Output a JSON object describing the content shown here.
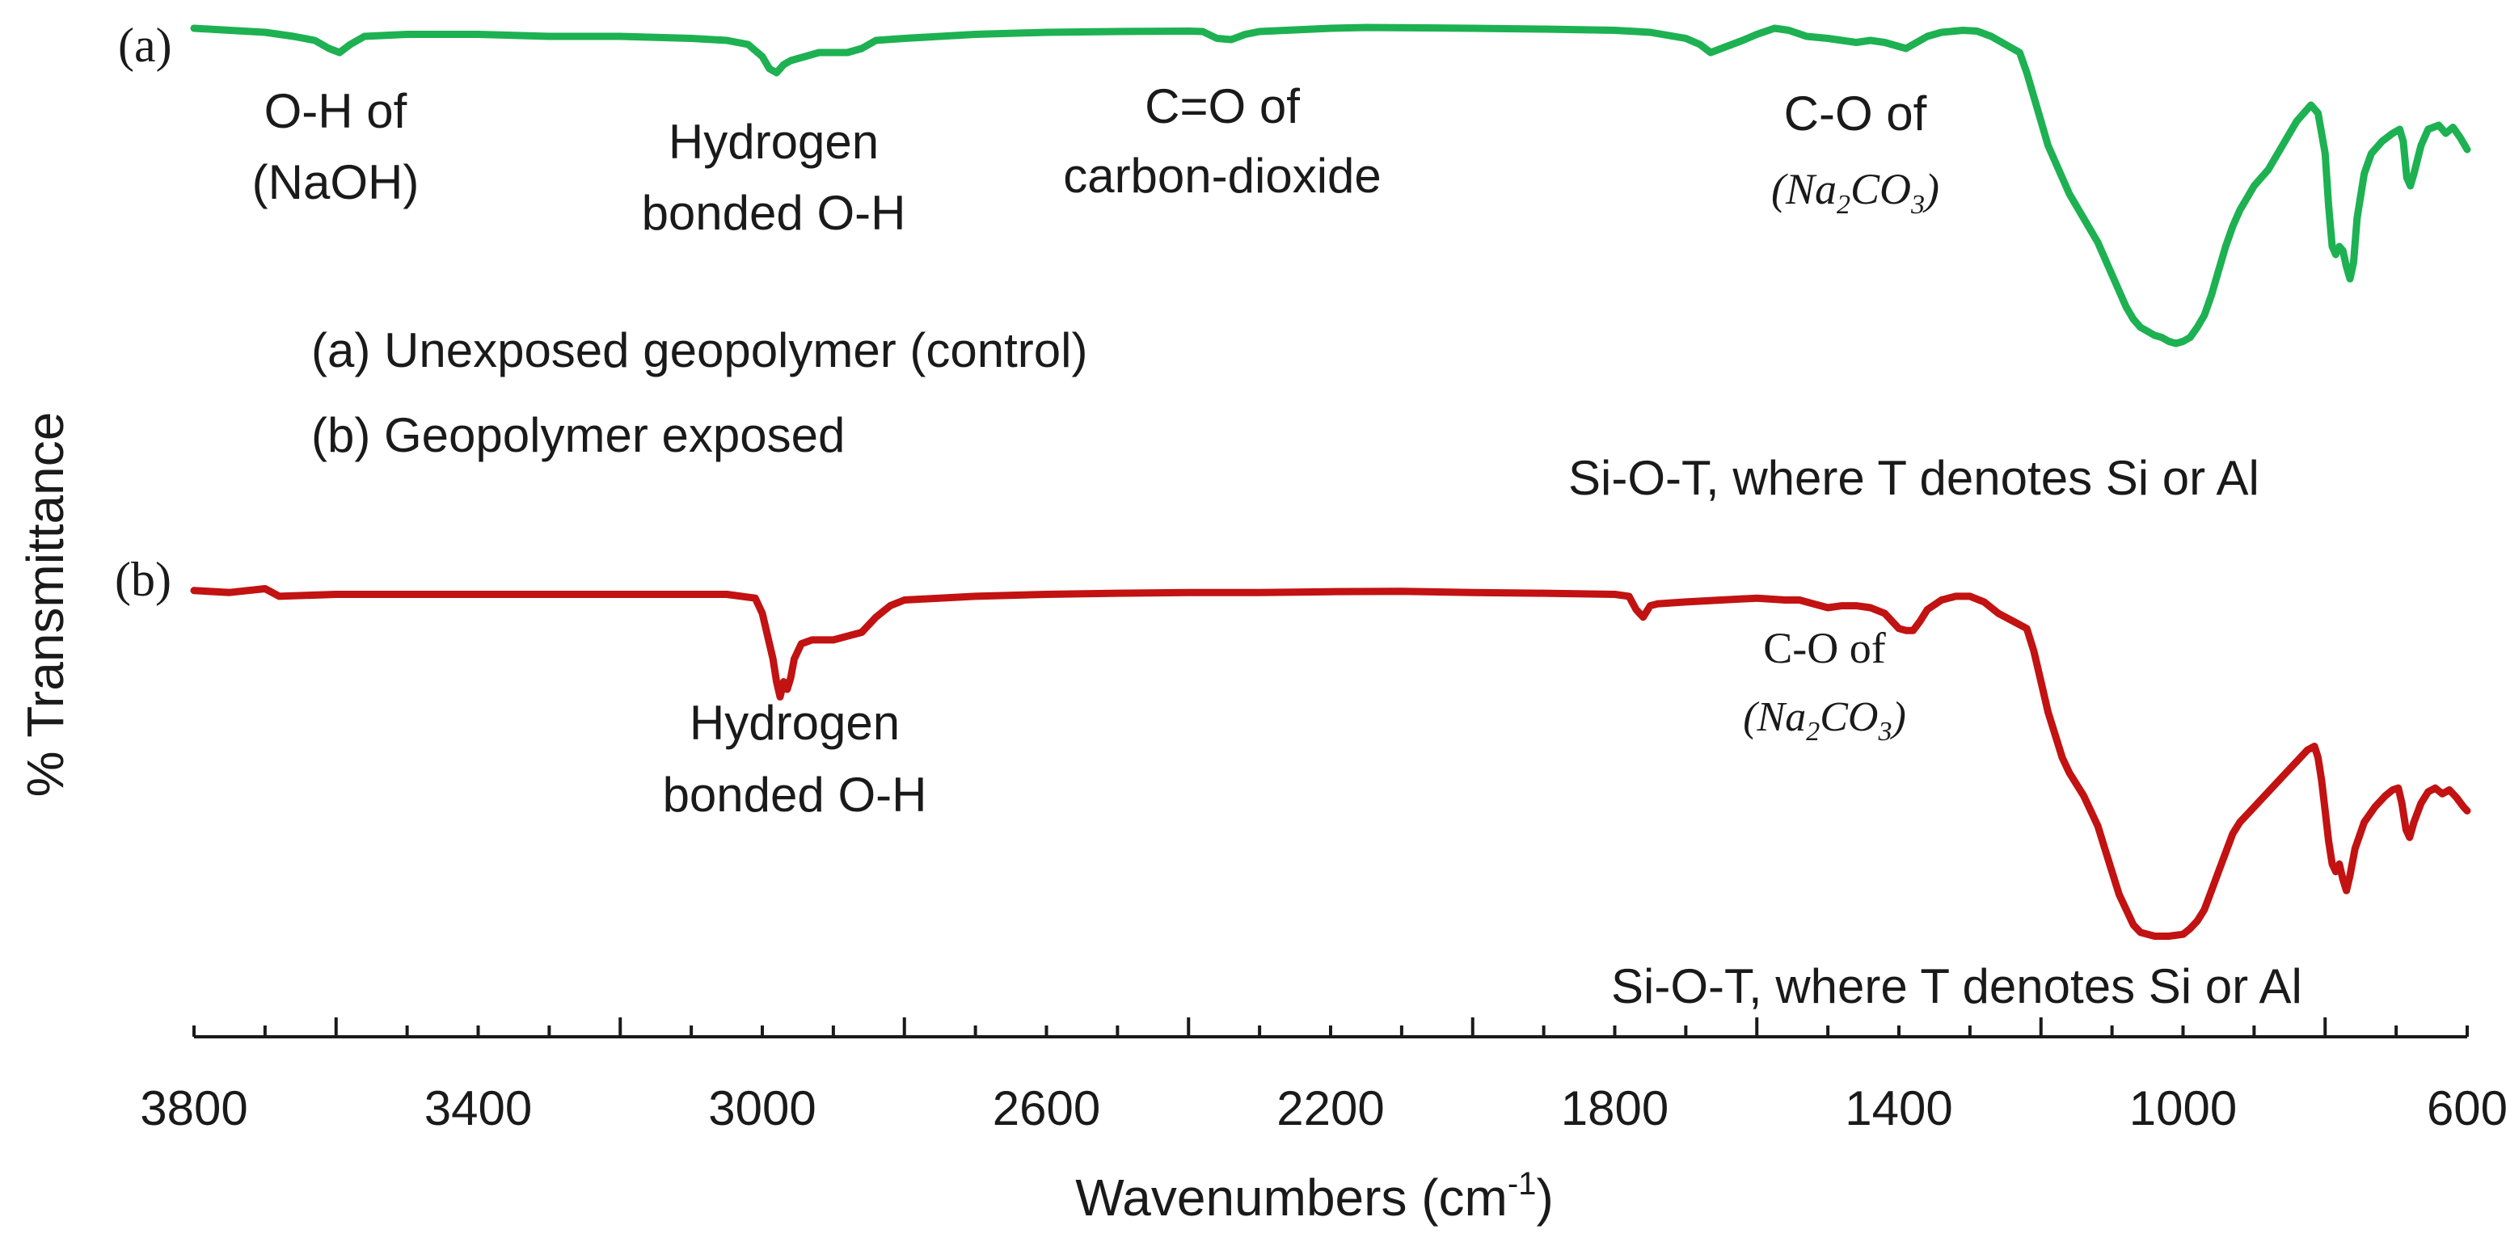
{
  "chart_data": {
    "type": "line",
    "title": "",
    "xlabel": "Wavenumbers",
    "xlabel_unit": "(cm",
    "xlabel_unit_sup": "-1",
    "xlabel_unit_close": ")",
    "ylabel": "% Transmittance",
    "xlim": [
      3800,
      600
    ],
    "x_reversed": true,
    "grid": false,
    "x_ticks": [
      3800,
      3400,
      3000,
      2600,
      2200,
      1800,
      1400,
      1000,
      600
    ],
    "x_tick_labels": [
      "3800",
      "3400",
      "3000",
      "2600",
      "2200",
      "1800",
      "1400",
      "1000",
      "600"
    ],
    "legend": {
      "placement": "upper-left",
      "entries": [
        "(a) Unexposed geopolymer (control)",
        "(b) Geopolymer exposed"
      ]
    },
    "series": [
      {
        "name": "(a) Unexposed geopolymer (control)",
        "panel_label": "(a)",
        "color": "#1db152",
        "ylim": [
          0,
          100
        ],
        "points": [
          [
            3800,
            99
          ],
          [
            3750,
            98.5
          ],
          [
            3700,
            98
          ],
          [
            3660,
            97
          ],
          [
            3630,
            96
          ],
          [
            3610,
            94
          ],
          [
            3595,
            93
          ],
          [
            3580,
            95
          ],
          [
            3560,
            97
          ],
          [
            3500,
            97.5
          ],
          [
            3400,
            97.5
          ],
          [
            3300,
            97
          ],
          [
            3200,
            97
          ],
          [
            3100,
            96.5
          ],
          [
            3050,
            96
          ],
          [
            3020,
            95
          ],
          [
            3000,
            92
          ],
          [
            2990,
            89
          ],
          [
            2980,
            88
          ],
          [
            2970,
            90
          ],
          [
            2960,
            91
          ],
          [
            2940,
            92
          ],
          [
            2920,
            93
          ],
          [
            2880,
            93
          ],
          [
            2860,
            94
          ],
          [
            2840,
            96
          ],
          [
            2800,
            96.5
          ],
          [
            2700,
            97.5
          ],
          [
            2600,
            98
          ],
          [
            2500,
            98.2
          ],
          [
            2400,
            98.3
          ],
          [
            2380,
            98.2
          ],
          [
            2360,
            96.5
          ],
          [
            2340,
            96.2
          ],
          [
            2320,
            97.5
          ],
          [
            2300,
            98.2
          ],
          [
            2200,
            99
          ],
          [
            2150,
            99.2
          ],
          [
            2000,
            99
          ],
          [
            1900,
            98.8
          ],
          [
            1800,
            98.5
          ],
          [
            1750,
            98
          ],
          [
            1700,
            96.5
          ],
          [
            1680,
            95
          ],
          [
            1665,
            93
          ],
          [
            1650,
            94
          ],
          [
            1620,
            96
          ],
          [
            1600,
            97.5
          ],
          [
            1575,
            99
          ],
          [
            1555,
            98.5
          ],
          [
            1530,
            97
          ],
          [
            1500,
            96.5
          ],
          [
            1480,
            96
          ],
          [
            1460,
            95.5
          ],
          [
            1440,
            96
          ],
          [
            1420,
            95.5
          ],
          [
            1400,
            94.5
          ],
          [
            1390,
            94
          ],
          [
            1375,
            95.5
          ],
          [
            1360,
            97
          ],
          [
            1340,
            98
          ],
          [
            1310,
            98.5
          ],
          [
            1290,
            98.3
          ],
          [
            1270,
            97
          ],
          [
            1250,
            95
          ],
          [
            1230,
            93
          ],
          [
            1220,
            88
          ],
          [
            1210,
            82
          ],
          [
            1200,
            76
          ],
          [
            1190,
            70
          ],
          [
            1180,
            66
          ],
          [
            1170,
            62
          ],
          [
            1160,
            58
          ],
          [
            1150,
            55
          ],
          [
            1140,
            52
          ],
          [
            1130,
            49
          ],
          [
            1120,
            46
          ],
          [
            1110,
            42
          ],
          [
            1100,
            38
          ],
          [
            1090,
            34
          ],
          [
            1080,
            30
          ],
          [
            1070,
            27
          ],
          [
            1060,
            25
          ],
          [
            1050,
            24
          ],
          [
            1040,
            23
          ],
          [
            1030,
            22.5
          ],
          [
            1020,
            21.5
          ],
          [
            1010,
            21
          ],
          [
            1000,
            21.5
          ],
          [
            990,
            22.5
          ],
          [
            980,
            25
          ],
          [
            970,
            28
          ],
          [
            960,
            33
          ],
          [
            950,
            39
          ],
          [
            940,
            45
          ],
          [
            930,
            50
          ],
          [
            920,
            54
          ],
          [
            910,
            57
          ],
          [
            900,
            60
          ],
          [
            880,
            64
          ],
          [
            860,
            70
          ],
          [
            840,
            76
          ],
          [
            820,
            80
          ],
          [
            810,
            78
          ],
          [
            800,
            68
          ],
          [
            795,
            55
          ],
          [
            790,
            45
          ],
          [
            785,
            43
          ],
          [
            780,
            45
          ],
          [
            775,
            44
          ],
          [
            770,
            40
          ],
          [
            765,
            37
          ],
          [
            760,
            41
          ],
          [
            755,
            52
          ],
          [
            745,
            63
          ],
          [
            735,
            68
          ],
          [
            720,
            71
          ],
          [
            705,
            73
          ],
          [
            695,
            74
          ],
          [
            690,
            71
          ],
          [
            685,
            62
          ],
          [
            680,
            60
          ],
          [
            675,
            63
          ],
          [
            665,
            70
          ],
          [
            655,
            74
          ],
          [
            640,
            75
          ],
          [
            630,
            73
          ],
          [
            620,
            74.5
          ],
          [
            610,
            72
          ],
          [
            600,
            69
          ]
        ]
      },
      {
        "name": "(b) Geopolymer exposed",
        "panel_label": "(b)",
        "color": "#c21212",
        "ylim": [
          0,
          100
        ],
        "points": [
          [
            3800,
            96
          ],
          [
            3750,
            95.5
          ],
          [
            3700,
            96.5
          ],
          [
            3680,
            94.5
          ],
          [
            3600,
            95
          ],
          [
            3500,
            95
          ],
          [
            3400,
            95
          ],
          [
            3300,
            95
          ],
          [
            3200,
            95
          ],
          [
            3100,
            95
          ],
          [
            3050,
            95
          ],
          [
            3010,
            94
          ],
          [
            3000,
            90
          ],
          [
            2990,
            82
          ],
          [
            2985,
            78
          ],
          [
            2980,
            72
          ],
          [
            2975,
            68
          ],
          [
            2970,
            72
          ],
          [
            2965,
            70
          ],
          [
            2960,
            73
          ],
          [
            2955,
            78
          ],
          [
            2945,
            82
          ],
          [
            2930,
            83
          ],
          [
            2900,
            83
          ],
          [
            2880,
            84
          ],
          [
            2860,
            85
          ],
          [
            2840,
            89
          ],
          [
            2820,
            92
          ],
          [
            2800,
            93.5
          ],
          [
            2700,
            94.5
          ],
          [
            2600,
            95
          ],
          [
            2500,
            95.3
          ],
          [
            2400,
            95.5
          ],
          [
            2300,
            95.5
          ],
          [
            2200,
            95.7
          ],
          [
            2100,
            95.8
          ],
          [
            2000,
            95.5
          ],
          [
            1900,
            95.3
          ],
          [
            1800,
            95
          ],
          [
            1780,
            94.5
          ],
          [
            1770,
            91
          ],
          [
            1760,
            89
          ],
          [
            1750,
            92
          ],
          [
            1740,
            92.5
          ],
          [
            1700,
            93
          ],
          [
            1650,
            93.5
          ],
          [
            1600,
            94
          ],
          [
            1560,
            93.5
          ],
          [
            1540,
            93.5
          ],
          [
            1520,
            92.5
          ],
          [
            1500,
            91.5
          ],
          [
            1480,
            92
          ],
          [
            1460,
            92
          ],
          [
            1440,
            91.5
          ],
          [
            1420,
            90
          ],
          [
            1400,
            86
          ],
          [
            1390,
            85.5
          ],
          [
            1380,
            85.5
          ],
          [
            1370,
            88
          ],
          [
            1360,
            91
          ],
          [
            1340,
            93.5
          ],
          [
            1320,
            94.5
          ],
          [
            1300,
            94.5
          ],
          [
            1280,
            93
          ],
          [
            1260,
            90
          ],
          [
            1240,
            88
          ],
          [
            1220,
            86
          ],
          [
            1210,
            80
          ],
          [
            1200,
            72
          ],
          [
            1190,
            64
          ],
          [
            1180,
            58
          ],
          [
            1170,
            52
          ],
          [
            1160,
            48
          ],
          [
            1150,
            45
          ],
          [
            1140,
            42
          ],
          [
            1130,
            38
          ],
          [
            1120,
            34
          ],
          [
            1110,
            28
          ],
          [
            1100,
            22
          ],
          [
            1090,
            16
          ],
          [
            1080,
            12
          ],
          [
            1070,
            8
          ],
          [
            1060,
            6
          ],
          [
            1040,
            5
          ],
          [
            1020,
            5
          ],
          [
            1000,
            5.5
          ],
          [
            990,
            7
          ],
          [
            980,
            9
          ],
          [
            970,
            12
          ],
          [
            960,
            17
          ],
          [
            950,
            22
          ],
          [
            940,
            27
          ],
          [
            930,
            32
          ],
          [
            920,
            35
          ],
          [
            900,
            39
          ],
          [
            880,
            43
          ],
          [
            860,
            47
          ],
          [
            840,
            51
          ],
          [
            825,
            54
          ],
          [
            815,
            55
          ],
          [
            810,
            52
          ],
          [
            805,
            46
          ],
          [
            800,
            38
          ],
          [
            795,
            30
          ],
          [
            790,
            24
          ],
          [
            785,
            22
          ],
          [
            780,
            24
          ],
          [
            775,
            20
          ],
          [
            770,
            17
          ],
          [
            765,
            21
          ],
          [
            758,
            28
          ],
          [
            745,
            35
          ],
          [
            730,
            39
          ],
          [
            715,
            42
          ],
          [
            705,
            43.5
          ],
          [
            697,
            44
          ],
          [
            692,
            40
          ],
          [
            686,
            33
          ],
          [
            681,
            31
          ],
          [
            675,
            35
          ],
          [
            665,
            40
          ],
          [
            655,
            43
          ],
          [
            645,
            44
          ],
          [
            635,
            42.5
          ],
          [
            625,
            43.5
          ],
          [
            615,
            41.5
          ],
          [
            605,
            39
          ],
          [
            600,
            38
          ]
        ]
      }
    ],
    "annotations": {
      "a": {
        "oh_naoh": [
          "O-H of",
          "(NaOH)"
        ],
        "hbond": [
          "Hydrogen",
          "bonded O-H"
        ],
        "co2": [
          "C=O of",
          "carbon-dioxide"
        ],
        "co_title": "C-O  of",
        "co_formula": {
          "open": "(",
          "na": "Na",
          "sub1": "2",
          "co": "CO",
          "sub2": "3",
          "close": ")"
        },
        "siot": "Si-O-T, where T denotes Si or Al"
      },
      "b": {
        "hbond": [
          "Hydrogen",
          "bonded O-H"
        ],
        "co_title": "C-O  of",
        "co_formula": {
          "open": "(",
          "na": "Na",
          "sub1": "2",
          "co": "CO",
          "sub2": "3",
          "close": ")"
        },
        "siot": "Si-O-T, where T denotes Si or Al"
      }
    }
  }
}
